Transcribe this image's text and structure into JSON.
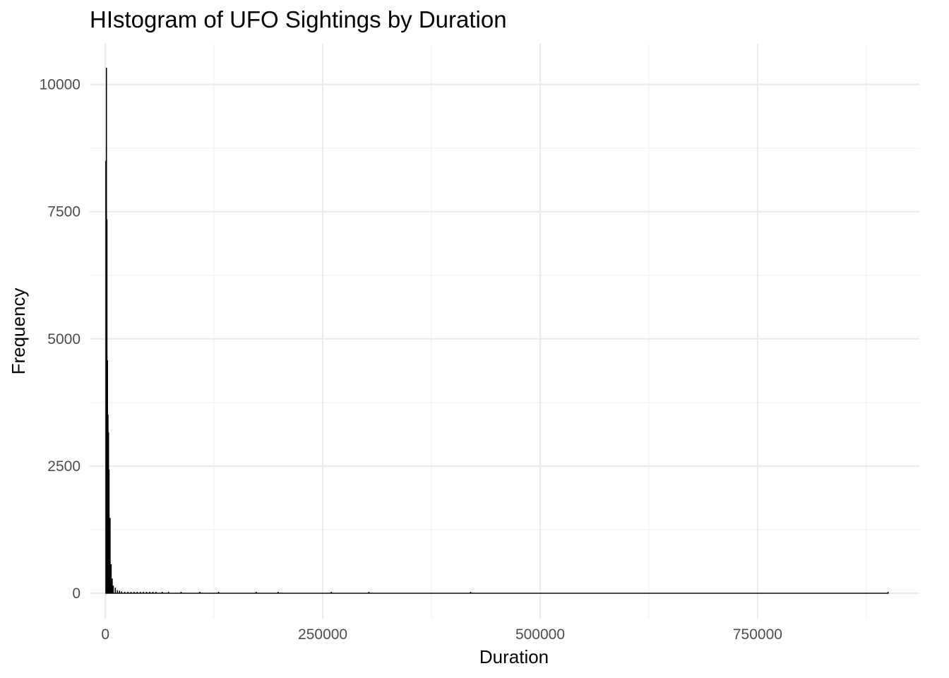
{
  "chart_data": {
    "type": "bar",
    "title": "HIstogram of UFO Sightings by Duration",
    "xlabel": "Duration",
    "ylabel": "Frequency",
    "xlim": [
      -18000,
      936000
    ],
    "ylim": [
      -500,
      10800
    ],
    "x_ticks": [
      0,
      250000,
      500000,
      750000
    ],
    "x_tick_labels": [
      "0",
      "250000",
      "500000",
      "750000"
    ],
    "y_ticks": [
      0,
      2500,
      5000,
      7500,
      10000
    ],
    "y_tick_labels": [
      "0",
      "2500",
      "5000",
      "7500",
      "10000"
    ],
    "grid": true,
    "bar_color": "#000000",
    "bar_width": 1200,
    "x": [
      0,
      600,
      1200,
      1800,
      2400,
      3000,
      3600,
      4200,
      4800,
      5400,
      6000,
      7200,
      8400,
      10800,
      13200,
      15600,
      18000,
      21600,
      25200,
      28800,
      32400,
      36000,
      39600,
      43200,
      46800,
      50400,
      54000,
      57600,
      64800,
      72000,
      86400,
      108000,
      129600,
      172800,
      198000,
      259200,
      302400,
      419400,
      899400
    ],
    "values": [
      8500,
      10330,
      7350,
      4580,
      3510,
      3160,
      2430,
      320,
      1480,
      90,
      570,
      290,
      150,
      110,
      60,
      50,
      35,
      30,
      25,
      20,
      18,
      15,
      15,
      12,
      12,
      10,
      10,
      8,
      8,
      7,
      6,
      5,
      4,
      3,
      3,
      2,
      2,
      1,
      1
    ]
  },
  "colors": {
    "background": "#ffffff",
    "grid_major": "#ebebeb",
    "grid_minor": "#f2f2f2",
    "baseline": "#000000"
  }
}
